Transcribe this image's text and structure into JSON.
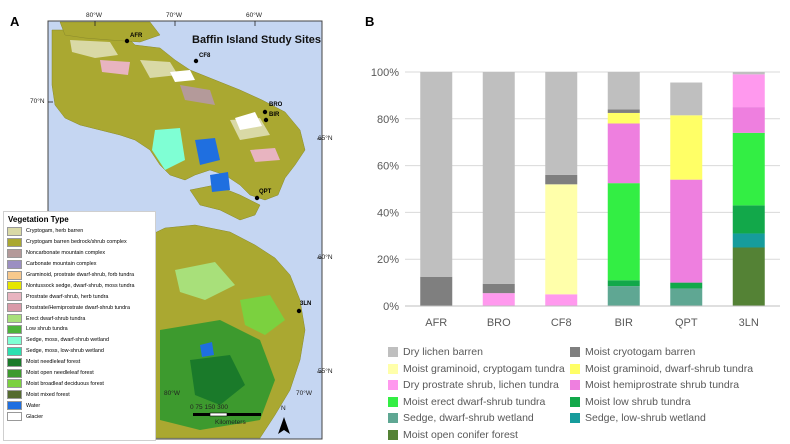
{
  "panel_a": {
    "letter": "A",
    "map_title": "Baffin Island Study Sites",
    "top_coords": [
      "80°W",
      "70°W",
      "60°W"
    ],
    "bottom_coords": [
      "80°W",
      "70°W"
    ],
    "left_coords": [
      "70°N"
    ],
    "right_coords": [
      "65°N",
      "60°N",
      "55°N"
    ],
    "sites": [
      "AFR",
      "CF8",
      "BRO",
      "BIR",
      "QPT",
      "3LN"
    ],
    "scale_numbers": "0 75 150 300",
    "scale_unit": "Kilometers",
    "north_label": "N",
    "legend": {
      "title": "Vegetation Type",
      "items": [
        {
          "label": "Cryptogam, herb barren",
          "color": "#d9d9a6"
        },
        {
          "label": "Cryptogam barren bedrock/shrub complex",
          "color": "#aaa831"
        },
        {
          "label": "Noncarbonate mountain complex",
          "color": "#b49a9a"
        },
        {
          "label": "Carbonate mountain complex",
          "color": "#9b8fc2"
        },
        {
          "label": "Graminoid, prostrate dwarf-shrub, forb tundra",
          "color": "#f7c98c"
        },
        {
          "label": "Nontussock sedge, dwarf-shrub, moss tundra",
          "color": "#e6e600"
        },
        {
          "label": "Prostrate dwarf-shrub, herb tundra",
          "color": "#e8b4c0"
        },
        {
          "label": "Prostrate/Hemiprostrate dwarf-shrub tundra",
          "color": "#d99aa8"
        },
        {
          "label": "Erect dwarf-shrub tundra",
          "color": "#a8e07a"
        },
        {
          "label": "Low shrub tundra",
          "color": "#4cb33a"
        },
        {
          "label": "Sedge, moss, dwarf-shrub wetland",
          "color": "#7fffd4"
        },
        {
          "label": "Sedge, moss, low-shrub wetland",
          "color": "#2ce0b0"
        },
        {
          "label": "Moist needleleaf forest",
          "color": "#1a7a2a"
        },
        {
          "label": "Moist open needleleaf forest",
          "color": "#3d9a2e"
        },
        {
          "label": "Moist broadleaf deciduous forest",
          "color": "#7bd13f"
        },
        {
          "label": "Moist mixed forest",
          "color": "#556b2f"
        },
        {
          "label": "Water",
          "color": "#1f6fe0"
        },
        {
          "label": "Glacier",
          "color": "#ffffff"
        }
      ]
    }
  },
  "panel_b": {
    "letter": "B"
  },
  "chart_data": {
    "type": "bar",
    "stacked": true,
    "categories": [
      "AFR",
      "BRO",
      "CF8",
      "BIR",
      "QPT",
      "3LN"
    ],
    "yticks": [
      "0%",
      "20%",
      "40%",
      "60%",
      "80%",
      "100%"
    ],
    "ylim": [
      0,
      100
    ],
    "grid": "horizontal",
    "legend_position": "bottom",
    "series": [
      {
        "name": "Moist open conifer forest",
        "color": "#548235",
        "values": [
          0,
          0,
          0,
          0,
          0,
          25
        ]
      },
      {
        "name": "Sedge, low-shrub wetland",
        "color": "#169c9c",
        "values": [
          0,
          0,
          0,
          0,
          0,
          6
        ]
      },
      {
        "name": "Sedge, dwarf-shrub wetland",
        "color": "#5fa793",
        "values": [
          0,
          0,
          0,
          8.5,
          7.5,
          0
        ]
      },
      {
        "name": "Moist low shrub tundra",
        "color": "#12a84a",
        "values": [
          0,
          0,
          0,
          2.5,
          2.5,
          12
        ]
      },
      {
        "name": "Moist erect dwarf-shrub tundra",
        "color": "#33ee44",
        "values": [
          0,
          0,
          0,
          41.5,
          0,
          31
        ]
      },
      {
        "name": "Moist hemiprostrate shrub tundra",
        "color": "#ee7fdf",
        "values": [
          0,
          0,
          0,
          25.5,
          44,
          11
        ]
      },
      {
        "name": "Dry prostrate shrub, lichen tundra",
        "color": "#ff99ee",
        "values": [
          0,
          5.5,
          5,
          0,
          0,
          14
        ]
      },
      {
        "name": "Moist graminoid, dwarf-shrub tundra",
        "color": "#ffff66",
        "values": [
          0,
          0,
          0,
          4.5,
          27.5,
          0
        ]
      },
      {
        "name": "Moist graminoid, cryptogam tundra",
        "color": "#ffffaa",
        "values": [
          0,
          0,
          47,
          0,
          0,
          0
        ]
      },
      {
        "name": "Moist cryotogam barren",
        "color": "#7f7f7f",
        "values": [
          12.5,
          4,
          4,
          1.5,
          0,
          0
        ]
      },
      {
        "name": "Dry lichen barren",
        "color": "#bfbfbf",
        "values": [
          87.5,
          90.5,
          44,
          16,
          14,
          1
        ]
      }
    ],
    "legend_order": [
      "Dry lichen barren",
      "Moist cryotogam barren",
      "Moist graminoid, cryptogam tundra",
      "Moist graminoid, dwarf-shrub tundra",
      "Dry prostrate shrub, lichen tundra",
      "Moist hemiprostrate shrub tundra",
      "Moist erect dwarf-shrub tundra",
      "Moist low shrub tundra",
      "Sedge, dwarf-shrub wetland",
      "Sedge, low-shrub wetland",
      "Moist open conifer forest"
    ]
  }
}
